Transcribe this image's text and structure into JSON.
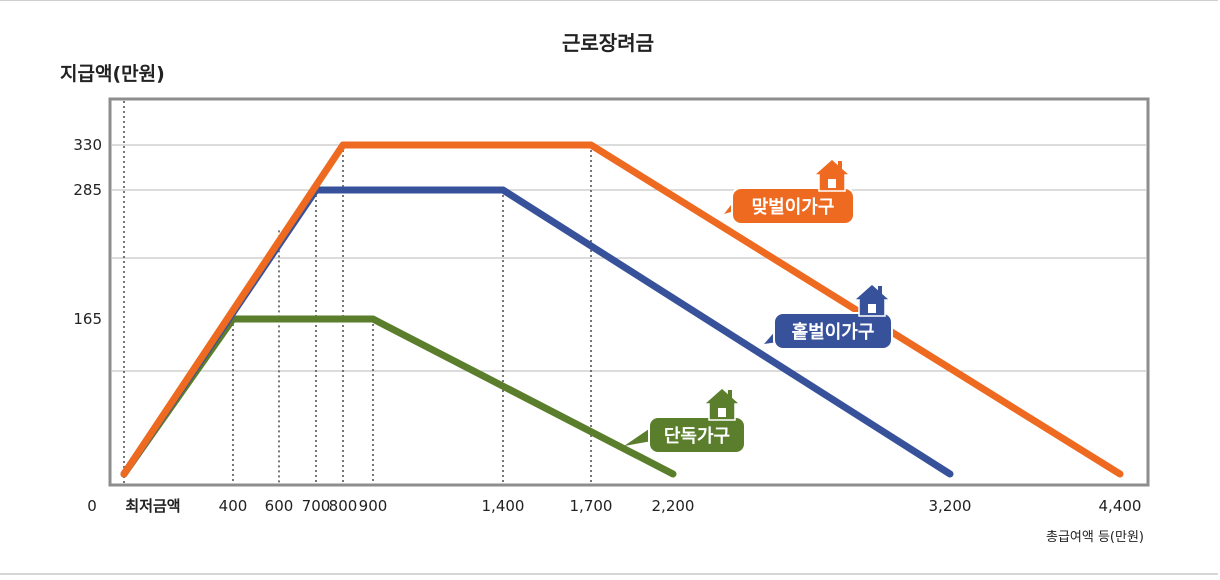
{
  "chart_data": {
    "type": "line",
    "title": "근로장려금",
    "ylabel": "지급액(만원)",
    "xlabel": "총급여액 등(만원)",
    "x_origin_label": "0",
    "x_min_label": "최저금액",
    "x_ticks": [
      400,
      600,
      700,
      800,
      900,
      1400,
      1700,
      2200,
      3200,
      4400
    ],
    "x_tick_labels": [
      "400",
      "600",
      "700",
      "800",
      "900",
      "1,400",
      "1,700",
      "2,200",
      "3,200",
      "4,400"
    ],
    "y_ticks": [
      165,
      285,
      330
    ],
    "y_tick_labels": [
      "165",
      "285",
      "330"
    ],
    "series": [
      {
        "name": "맞벌이가구",
        "color": "#ef6a21",
        "icon": "house-icon",
        "x": [
          0,
          800,
          1700,
          4400
        ],
        "y": [
          0,
          330,
          330,
          0
        ]
      },
      {
        "name": "홑벌이가구",
        "color": "#37519b",
        "icon": "house-icon",
        "x": [
          0,
          700,
          1400,
          3200
        ],
        "y": [
          0,
          285,
          285,
          0
        ]
      },
      {
        "name": "단독가구",
        "color": "#5a7e2b",
        "icon": "house-icon",
        "x": [
          0,
          400,
          900,
          2200
        ],
        "y": [
          0,
          165,
          165,
          0
        ]
      }
    ],
    "grid": true
  }
}
